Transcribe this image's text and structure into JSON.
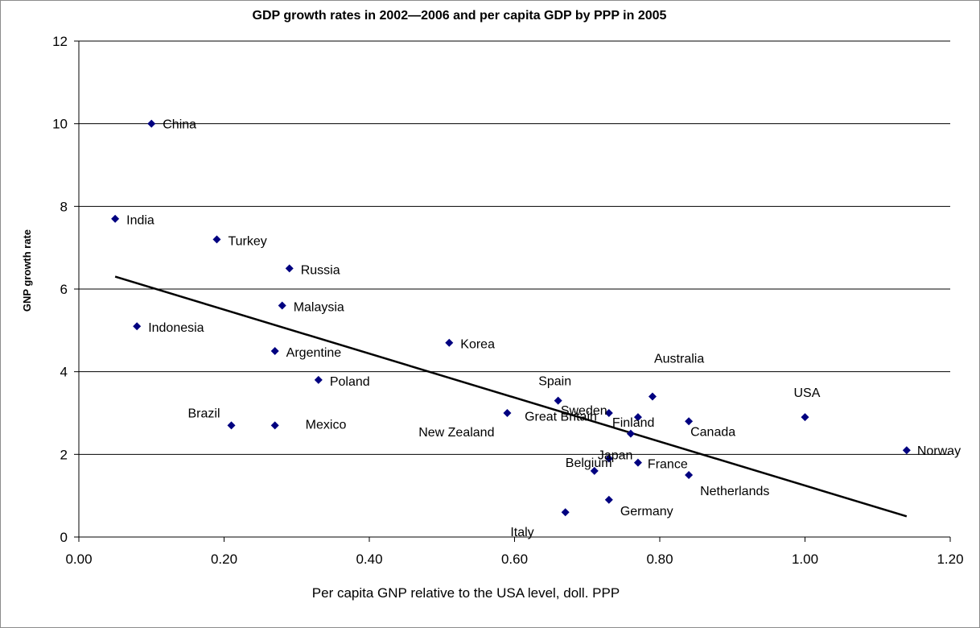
{
  "chart_data": {
    "type": "scatter",
    "title": "GDP growth rates in 2002—2006 and per capita GDP by PPP in 2005",
    "xlabel": "Per capita GNP relative to the USA level, doll. PPP",
    "ylabel": "GNP growth rate",
    "xlim": [
      0,
      1.2
    ],
    "ylim": [
      0,
      12
    ],
    "x_ticks": [
      "0.00",
      "0.20",
      "0.40",
      "0.60",
      "0.80",
      "1.00",
      "1.20"
    ],
    "y_ticks": [
      "0",
      "2",
      "4",
      "6",
      "8",
      "10",
      "12"
    ],
    "grid": "horizontal",
    "legend": "none",
    "marker_color": "#000080",
    "line_color": "#000000",
    "points": [
      {
        "label": "China",
        "x": 0.1,
        "y": 10.0
      },
      {
        "label": "India",
        "x": 0.05,
        "y": 7.7
      },
      {
        "label": "Turkey",
        "x": 0.19,
        "y": 7.2
      },
      {
        "label": "Russia",
        "x": 0.29,
        "y": 6.5
      },
      {
        "label": "Malaysia",
        "x": 0.28,
        "y": 5.6
      },
      {
        "label": "Indonesia",
        "x": 0.08,
        "y": 5.1
      },
      {
        "label": "Argentine",
        "x": 0.27,
        "y": 4.5
      },
      {
        "label": "Korea",
        "x": 0.51,
        "y": 4.7
      },
      {
        "label": "Poland",
        "x": 0.33,
        "y": 3.8
      },
      {
        "label": "Brazil",
        "x": 0.21,
        "y": 2.7
      },
      {
        "label": "Mexico",
        "x": 0.27,
        "y": 2.7
      },
      {
        "label": "New Zealand",
        "x": 0.59,
        "y": 3.0
      },
      {
        "label": "Spain",
        "x": 0.66,
        "y": 3.3
      },
      {
        "label": "Sweden",
        "x": 0.73,
        "y": 3.0
      },
      {
        "label": "Australia",
        "x": 0.79,
        "y": 3.4
      },
      {
        "label": "Finland",
        "x": 0.77,
        "y": 2.9
      },
      {
        "label": "Canada",
        "x": 0.84,
        "y": 2.8
      },
      {
        "label": "USA",
        "x": 1.0,
        "y": 2.9
      },
      {
        "label": "Norway",
        "x": 1.14,
        "y": 2.1
      },
      {
        "label": "Great Britain",
        "x": 0.76,
        "y": 2.5
      },
      {
        "label": "Japan",
        "x": 0.73,
        "y": 1.9
      },
      {
        "label": "Belgium",
        "x": 0.71,
        "y": 1.6
      },
      {
        "label": "France",
        "x": 0.77,
        "y": 1.8
      },
      {
        "label": "Netherlands",
        "x": 0.84,
        "y": 1.5
      },
      {
        "label": "Italy",
        "x": 0.67,
        "y": 0.6
      },
      {
        "label": "Germany",
        "x": 0.73,
        "y": 0.9
      }
    ],
    "trendline": {
      "x": [
        0.05,
        1.14
      ],
      "y": [
        6.3,
        0.5
      ]
    }
  }
}
